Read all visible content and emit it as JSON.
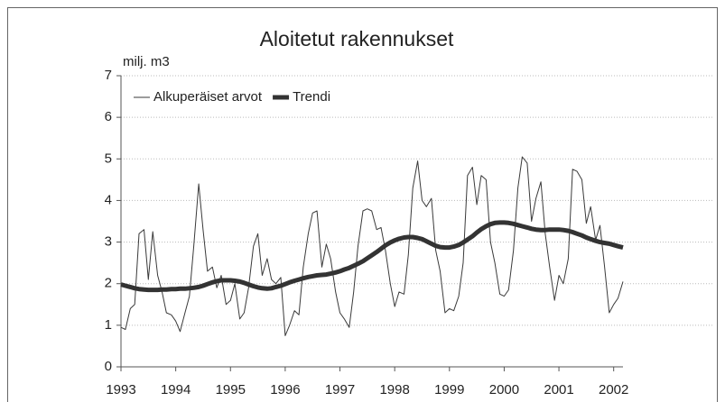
{
  "chart_data": {
    "type": "line",
    "title": "Aloitetut rakennukset",
    "ylabel": "milj. m3",
    "x": [
      1993,
      1993.08,
      1993.17,
      1993.25,
      1993.33,
      1993.42,
      1993.5,
      1993.58,
      1993.67,
      1993.75,
      1993.83,
      1993.92,
      1994,
      1994.08,
      1994.17,
      1994.25,
      1994.33,
      1994.42,
      1994.5,
      1994.58,
      1994.67,
      1994.75,
      1994.83,
      1994.92,
      1995,
      1995.08,
      1995.17,
      1995.25,
      1995.33,
      1995.42,
      1995.5,
      1995.58,
      1995.67,
      1995.75,
      1995.83,
      1995.92,
      1996,
      1996.08,
      1996.17,
      1996.25,
      1996.33,
      1996.42,
      1996.5,
      1996.58,
      1996.67,
      1996.75,
      1996.83,
      1996.92,
      1997,
      1997.08,
      1997.17,
      1997.25,
      1997.33,
      1997.42,
      1997.5,
      1997.58,
      1997.67,
      1997.75,
      1997.83,
      1997.92,
      1998,
      1998.08,
      1998.17,
      1998.25,
      1998.33,
      1998.42,
      1998.5,
      1998.58,
      1998.67,
      1998.75,
      1998.83,
      1998.92,
      1999,
      1999.08,
      1999.17,
      1999.25,
      1999.33,
      1999.42,
      1999.5,
      1999.58,
      1999.67,
      1999.75,
      1999.83,
      1999.92,
      2000,
      2000.08,
      2000.17,
      2000.25,
      2000.33,
      2000.42,
      2000.5,
      2000.58,
      2000.67,
      2000.75,
      2000.83,
      2000.92,
      2001,
      2001.08,
      2001.17,
      2001.25,
      2001.33,
      2001.42,
      2001.5,
      2001.58,
      2001.67,
      2001.75,
      2001.83,
      2001.92,
      2002,
      2002.08,
      2002.17
    ],
    "series": [
      {
        "name": "Alkuperäiset arvot",
        "color": "#3a3a3a",
        "width": 1,
        "values": [
          0.95,
          0.9,
          1.4,
          1.5,
          3.2,
          3.3,
          2.1,
          3.25,
          2.2,
          1.8,
          1.3,
          1.25,
          1.1,
          0.85,
          1.3,
          1.7,
          2.9,
          4.4,
          3.3,
          2.3,
          2.4,
          1.9,
          2.2,
          1.5,
          1.6,
          2.0,
          1.15,
          1.3,
          1.9,
          2.9,
          3.2,
          2.2,
          2.6,
          2.1,
          2.0,
          2.15,
          0.75,
          1.0,
          1.35,
          1.25,
          2.4,
          3.2,
          3.7,
          3.75,
          2.4,
          2.95,
          2.6,
          1.8,
          1.3,
          1.15,
          0.95,
          1.8,
          2.9,
          3.75,
          3.8,
          3.75,
          3.3,
          3.35,
          2.8,
          2.0,
          1.45,
          1.8,
          1.75,
          2.7,
          4.3,
          4.95,
          4.0,
          3.85,
          4.05,
          2.8,
          2.3,
          1.3,
          1.4,
          1.35,
          1.7,
          2.5,
          4.6,
          4.8,
          3.9,
          4.6,
          4.5,
          3.0,
          2.5,
          1.75,
          1.7,
          1.85,
          2.8,
          4.3,
          5.05,
          4.9,
          3.5,
          4.05,
          4.45,
          3.2,
          2.4,
          1.6,
          2.2,
          2.0,
          2.6,
          4.75,
          4.7,
          4.5,
          3.45,
          3.85,
          3.05,
          3.4,
          2.45,
          1.3,
          1.5,
          1.65,
          2.05
        ]
      },
      {
        "name": "Trendi",
        "color": "#333333",
        "width": 5,
        "values": [
          1.98,
          1.95,
          1.92,
          1.89,
          1.87,
          1.86,
          1.85,
          1.85,
          1.85,
          1.86,
          1.86,
          1.87,
          1.87,
          1.88,
          1.88,
          1.89,
          1.9,
          1.92,
          1.95,
          1.99,
          2.03,
          2.06,
          2.08,
          2.08,
          2.08,
          2.07,
          2.05,
          2.02,
          1.98,
          1.94,
          1.91,
          1.89,
          1.88,
          1.89,
          1.92,
          1.95,
          1.99,
          2.03,
          2.07,
          2.1,
          2.13,
          2.16,
          2.18,
          2.2,
          2.21,
          2.22,
          2.24,
          2.27,
          2.3,
          2.34,
          2.38,
          2.43,
          2.48,
          2.54,
          2.61,
          2.68,
          2.76,
          2.84,
          2.92,
          2.99,
          3.04,
          3.08,
          3.11,
          3.12,
          3.12,
          3.1,
          3.07,
          3.02,
          2.96,
          2.91,
          2.88,
          2.87,
          2.87,
          2.89,
          2.93,
          2.99,
          3.06,
          3.14,
          3.23,
          3.31,
          3.38,
          3.43,
          3.46,
          3.47,
          3.47,
          3.46,
          3.44,
          3.41,
          3.38,
          3.35,
          3.32,
          3.3,
          3.29,
          3.29,
          3.3,
          3.3,
          3.3,
          3.29,
          3.27,
          3.24,
          3.2,
          3.16,
          3.11,
          3.07,
          3.03,
          3.0,
          2.98,
          2.96,
          2.93,
          2.9,
          2.87
        ]
      }
    ],
    "xlim": [
      1993,
      2002.17
    ],
    "xticks": [
      1993,
      1994,
      1995,
      1996,
      1997,
      1998,
      1999,
      2000,
      2001,
      2002
    ],
    "ylim": [
      0,
      7
    ],
    "yticks": [
      0,
      1,
      2,
      3,
      4,
      5,
      6,
      7
    ],
    "grid": true,
    "legend": "upper left"
  }
}
